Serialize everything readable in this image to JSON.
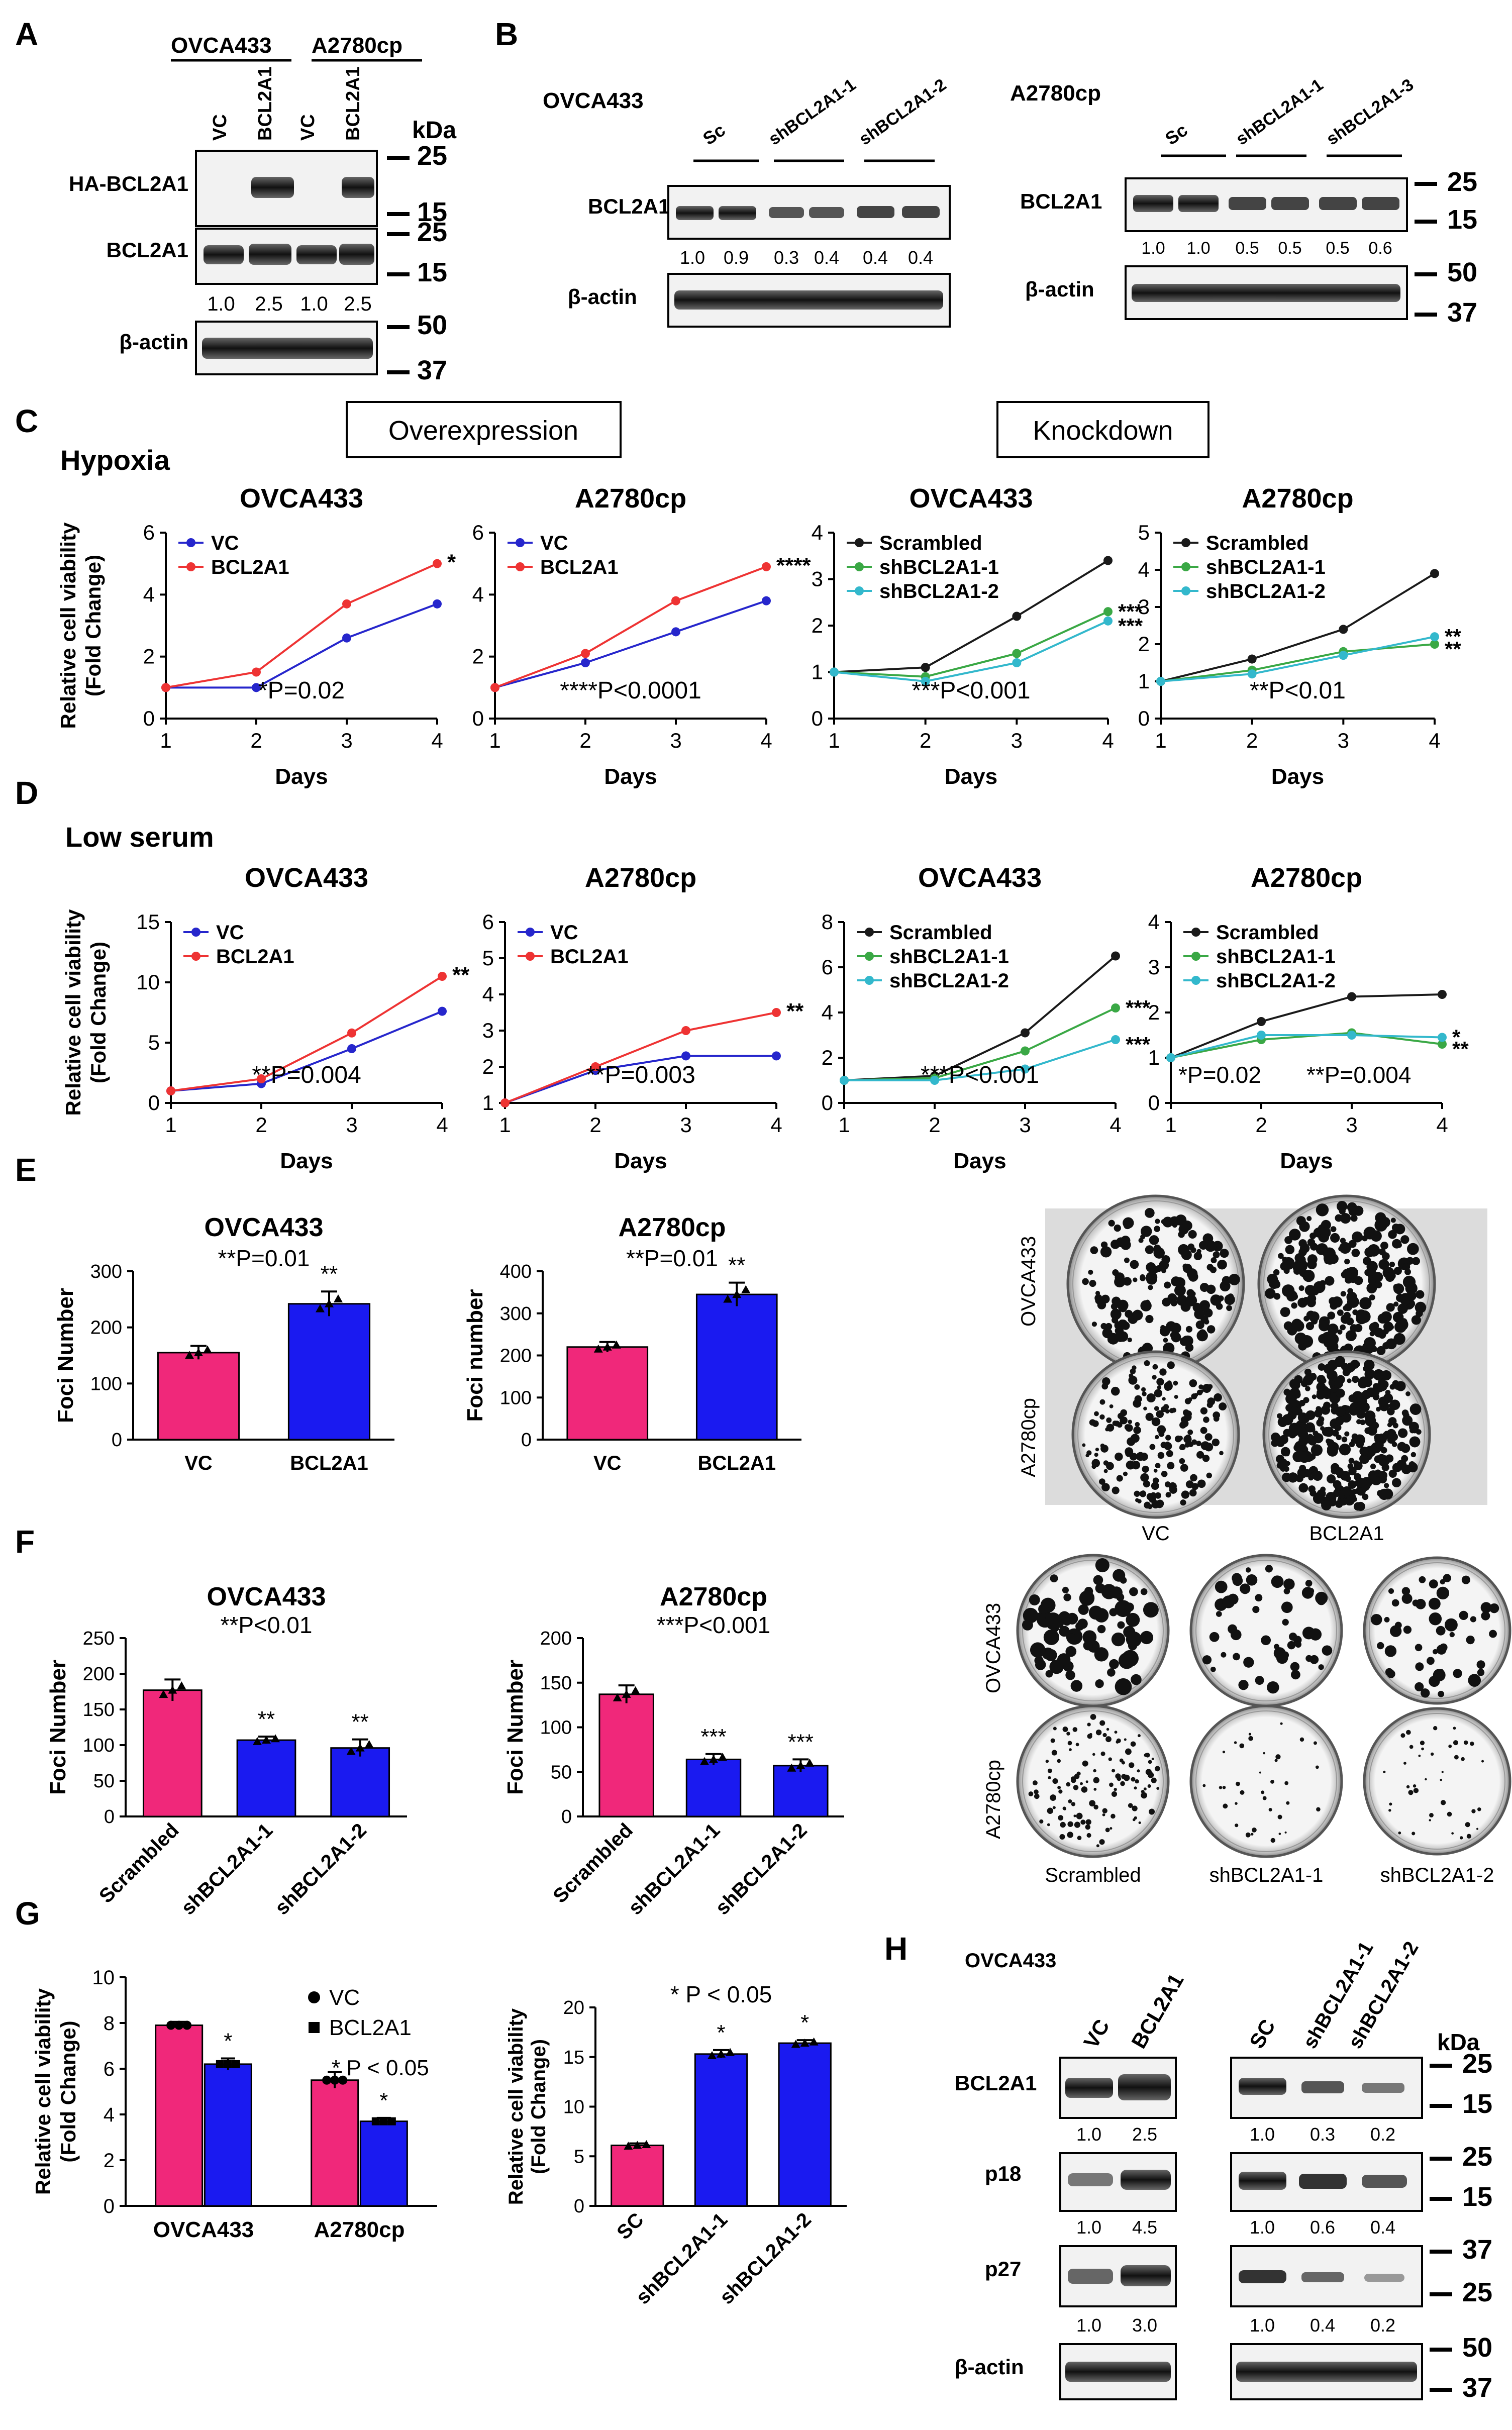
{
  "colors": {
    "red": "#ee3333",
    "blue": "#2626cc",
    "pink": "#f0287a",
    "bar_blue": "#1a1af0",
    "black": "#1a1a1a",
    "green": "#3aa845",
    "cyan": "#33b8cc"
  },
  "panel_letters": {
    "A": "A",
    "B": "B",
    "C": "C",
    "D": "D",
    "E": "E",
    "F": "F",
    "G": "G",
    "H": "H"
  },
  "blots": {
    "A": {
      "cell_lines": [
        "OVCA433",
        "A2780cp"
      ],
      "lanes": [
        "VC",
        "BCL2A1",
        "VC",
        "BCL2A1"
      ],
      "unit": "kDa",
      "rows": [
        {
          "label": "HA-BCL2A1",
          "markers": [
            "25",
            "15"
          ]
        },
        {
          "label": "BCL2A1",
          "markers": [
            "25",
            "15"
          ],
          "quant": [
            "1.0",
            "2.5",
            "1.0",
            "2.5"
          ]
        },
        {
          "label": "β-actin",
          "markers": [
            "50",
            "37"
          ]
        }
      ]
    },
    "B_left": {
      "cell_line": "OVCA433",
      "groups": [
        "Sc",
        "shBCL2A1-1",
        "shBCL2A1-2"
      ],
      "rows": [
        {
          "label": "BCL2A1",
          "quant": [
            "1.0",
            "0.9",
            "0.3",
            "0.4",
            "0.4",
            "0.4"
          ]
        },
        {
          "label": "β-actin"
        }
      ]
    },
    "B_right": {
      "cell_line": "A2780cp",
      "groups": [
        "Sc",
        "shBCL2A1-1",
        "shBCL2A1-3"
      ],
      "rows": [
        {
          "label": "BCL2A1",
          "markers": [
            "25",
            "15"
          ],
          "quant": [
            "1.0",
            "1.0",
            "0.5",
            "0.5",
            "0.5",
            "0.6"
          ]
        },
        {
          "label": "β-actin",
          "markers": [
            "50",
            "37"
          ]
        }
      ]
    },
    "H": {
      "cell_line": "OVCA433",
      "left_lanes": [
        "VC",
        "BCL2A1"
      ],
      "right_lanes": [
        "SC",
        "shBCL2A1-1",
        "shBCL2A1-2"
      ],
      "unit": "kDa",
      "rows": [
        {
          "label": "BCL2A1",
          "markers": [
            "25",
            "15"
          ],
          "left_quant": [
            "1.0",
            "2.5"
          ],
          "right_quant": [
            "1.0",
            "0.3",
            "0.2"
          ]
        },
        {
          "label": "p18",
          "markers": [
            "25",
            "15"
          ],
          "left_quant": [
            "1.0",
            "4.5"
          ],
          "right_quant": [
            "1.0",
            "0.6",
            "0.4"
          ]
        },
        {
          "label": "p27",
          "markers": [
            "37",
            "25"
          ],
          "left_quant": [
            "1.0",
            "3.0"
          ],
          "right_quant": [
            "1.0",
            "0.4",
            "0.2"
          ]
        },
        {
          "label": "β-actin",
          "markers": [
            "50",
            "37"
          ]
        }
      ]
    }
  },
  "section_C": {
    "condition": "Hypoxia",
    "overexpression_label": "Overexpression",
    "knockdown_label": "Knockdown"
  },
  "section_D": {
    "condition": "Low serum"
  },
  "chart_data": [
    {
      "id": "C1",
      "type": "line",
      "title": "OVCA433",
      "xlabel": "Days",
      "ylabel": "Relative cell viability (Fold Change)",
      "x": [
        1,
        2,
        3,
        4
      ],
      "xlim": [
        1,
        4
      ],
      "ylim": [
        0,
        6
      ],
      "yticks": [
        0,
        2,
        4,
        6
      ],
      "series": [
        {
          "name": "VC",
          "color": "#2626cc",
          "values": [
            1.0,
            1.0,
            2.6,
            3.7
          ]
        },
        {
          "name": "BCL2A1",
          "color": "#ee3333",
          "values": [
            1.0,
            1.5,
            3.7,
            5.0
          ]
        }
      ],
      "annotation": "*P=0.02",
      "end_marks": [
        "*"
      ]
    },
    {
      "id": "C2",
      "type": "line",
      "title": "A2780cp",
      "xlabel": "Days",
      "x": [
        1,
        2,
        3,
        4
      ],
      "xlim": [
        1,
        4
      ],
      "ylim": [
        0,
        6
      ],
      "yticks": [
        0,
        2,
        4,
        6
      ],
      "series": [
        {
          "name": "VC",
          "color": "#2626cc",
          "values": [
            1.0,
            1.8,
            2.8,
            3.8
          ]
        },
        {
          "name": "BCL2A1",
          "color": "#ee3333",
          "values": [
            1.0,
            2.1,
            3.8,
            4.9
          ]
        }
      ],
      "annotation": "****P<0.0001",
      "end_marks": [
        "****"
      ]
    },
    {
      "id": "C3",
      "type": "line",
      "title": "OVCA433",
      "xlabel": "Days",
      "x": [
        1,
        2,
        3,
        4
      ],
      "xlim": [
        1,
        4
      ],
      "ylim": [
        0,
        4
      ],
      "yticks": [
        0,
        1,
        2,
        3,
        4
      ],
      "series": [
        {
          "name": "Scrambled",
          "color": "#1a1a1a",
          "values": [
            1.0,
            1.1,
            2.2,
            3.4
          ]
        },
        {
          "name": "shBCL2A1-1",
          "color": "#3aa845",
          "values": [
            1.0,
            0.9,
            1.4,
            2.3
          ]
        },
        {
          "name": "shBCL2A1-2",
          "color": "#33b8cc",
          "values": [
            1.0,
            0.8,
            1.2,
            2.1
          ]
        }
      ],
      "annotation": "***P<0.001",
      "end_marks": [
        "***",
        "***"
      ]
    },
    {
      "id": "C4",
      "type": "line",
      "title": "A2780cp",
      "xlabel": "Days",
      "x": [
        1,
        2,
        3,
        4
      ],
      "xlim": [
        1,
        4
      ],
      "ylim": [
        0,
        5
      ],
      "yticks": [
        0,
        1,
        2,
        3,
        4,
        5
      ],
      "series": [
        {
          "name": "Scrambled",
          "color": "#1a1a1a",
          "values": [
            1.0,
            1.6,
            2.4,
            3.9
          ]
        },
        {
          "name": "shBCL2A1-1",
          "color": "#3aa845",
          "values": [
            1.0,
            1.3,
            1.8,
            2.0
          ]
        },
        {
          "name": "shBCL2A1-2",
          "color": "#33b8cc",
          "values": [
            1.0,
            1.2,
            1.7,
            2.2
          ]
        }
      ],
      "annotation": "**P<0.01",
      "end_marks": [
        "**",
        "**"
      ]
    },
    {
      "id": "D1",
      "type": "line",
      "title": "OVCA433",
      "xlabel": "Days",
      "ylabel": "Relative cell viability (Fold Change)",
      "x": [
        1,
        2,
        3,
        4
      ],
      "xlim": [
        1,
        4
      ],
      "ylim": [
        0,
        15
      ],
      "yticks": [
        0,
        5,
        10,
        15
      ],
      "series": [
        {
          "name": "VC",
          "color": "#2626cc",
          "values": [
            1.0,
            1.6,
            4.5,
            7.6
          ]
        },
        {
          "name": "BCL2A1",
          "color": "#ee3333",
          "values": [
            1.0,
            2.0,
            5.8,
            10.5
          ]
        }
      ],
      "annotation": "**P=0.004",
      "end_marks": [
        "**"
      ]
    },
    {
      "id": "D2",
      "type": "line",
      "title": "A2780cp",
      "xlabel": "Days",
      "x": [
        1,
        2,
        3,
        4
      ],
      "xlim": [
        1,
        4
      ],
      "ylim": [
        1,
        6
      ],
      "yticks": [
        1,
        2,
        3,
        4,
        5,
        6
      ],
      "series": [
        {
          "name": "VC",
          "color": "#2626cc",
          "values": [
            1.0,
            1.9,
            2.3,
            2.3
          ]
        },
        {
          "name": "BCL2A1",
          "color": "#ee3333",
          "values": [
            1.0,
            2.0,
            3.0,
            3.5
          ]
        }
      ],
      "annotation": "**P=0.003",
      "end_marks": [
        "**"
      ]
    },
    {
      "id": "D3",
      "type": "line",
      "title": "OVCA433",
      "xlabel": "Days",
      "x": [
        1,
        2,
        3,
        4
      ],
      "xlim": [
        1,
        4
      ],
      "ylim": [
        0,
        8
      ],
      "yticks": [
        0,
        2,
        4,
        6,
        8
      ],
      "series": [
        {
          "name": "Scrambled",
          "color": "#1a1a1a",
          "values": [
            1.0,
            1.2,
            3.1,
            6.5
          ]
        },
        {
          "name": "shBCL2A1-1",
          "color": "#3aa845",
          "values": [
            1.0,
            1.1,
            2.3,
            4.2
          ]
        },
        {
          "name": "shBCL2A1-2",
          "color": "#33b8cc",
          "values": [
            1.0,
            1.0,
            1.5,
            2.8
          ]
        }
      ],
      "annotation": "***P<0.001",
      "end_marks": [
        "***",
        "***"
      ]
    },
    {
      "id": "D4",
      "type": "line",
      "title": "A2780cp",
      "xlabel": "Days",
      "x": [
        1,
        2,
        3,
        4
      ],
      "xlim": [
        1,
        4
      ],
      "ylim": [
        0,
        4
      ],
      "yticks": [
        0,
        1,
        2,
        3,
        4
      ],
      "series": [
        {
          "name": "Scrambled",
          "color": "#1a1a1a",
          "values": [
            1.0,
            1.8,
            2.35,
            2.4
          ]
        },
        {
          "name": "shBCL2A1-1",
          "color": "#3aa845",
          "values": [
            1.0,
            1.4,
            1.55,
            1.3
          ]
        },
        {
          "name": "shBCL2A1-2",
          "color": "#33b8cc",
          "values": [
            1.0,
            1.5,
            1.5,
            1.45
          ]
        }
      ],
      "annotation": "*P=0.02",
      "annotation2": "**P=0.004",
      "end_marks": [
        "*",
        "**"
      ]
    },
    {
      "id": "E1",
      "type": "bar",
      "title": "OVCA433",
      "ylabel": "Foci Number",
      "categories": [
        "VC",
        "BCL2A1"
      ],
      "values": [
        155,
        242
      ],
      "errors": [
        12,
        22
      ],
      "colors": [
        "#f0287a",
        "#1a1af0"
      ],
      "ylim": [
        0,
        300
      ],
      "yticks": [
        0,
        100,
        200,
        300
      ],
      "annotation": "**P=0.01",
      "bar_marks": [
        "",
        "**"
      ]
    },
    {
      "id": "E2",
      "type": "bar",
      "title": "A2780cp",
      "ylabel": "Foci number",
      "categories": [
        "VC",
        "BCL2A1"
      ],
      "values": [
        220,
        345
      ],
      "errors": [
        12,
        28
      ],
      "colors": [
        "#f0287a",
        "#1a1af0"
      ],
      "ylim": [
        0,
        400
      ],
      "yticks": [
        0,
        100,
        200,
        300,
        400
      ],
      "annotation": "**P=0.01",
      "bar_marks": [
        "",
        "**"
      ]
    },
    {
      "id": "F1",
      "type": "bar",
      "title": "OVCA433",
      "ylabel": "Foci Number",
      "categories": [
        "Scrambled",
        "shBCL2A1-1",
        "shBCL2A1-2"
      ],
      "values": [
        177,
        107,
        96
      ],
      "errors": [
        15,
        5,
        12
      ],
      "colors": [
        "#f0287a",
        "#1a1af0",
        "#1a1af0"
      ],
      "ylim": [
        0,
        250
      ],
      "yticks": [
        0,
        50,
        100,
        150,
        200,
        250
      ],
      "annotation": "**P<0.01",
      "bar_marks": [
        "",
        "**",
        "**"
      ]
    },
    {
      "id": "F2",
      "type": "bar",
      "title": "A2780cp",
      "ylabel": "Foci Number",
      "categories": [
        "Scrambled",
        "shBCL2A1-1",
        "shBCL2A1-2"
      ],
      "values": [
        137,
        64,
        57
      ],
      "errors": [
        10,
        6,
        7
      ],
      "colors": [
        "#f0287a",
        "#1a1af0",
        "#1a1af0"
      ],
      "ylim": [
        0,
        200
      ],
      "yticks": [
        0,
        50,
        100,
        150,
        200
      ],
      "annotation": "***P<0.001",
      "bar_marks": [
        "",
        "***",
        "***"
      ]
    },
    {
      "id": "G1",
      "type": "bar",
      "ylabel": "Relative cell viability (Fold Change)",
      "groups": [
        "OVCA433",
        "A2780cp"
      ],
      "series": [
        {
          "name": "VC",
          "color": "#f0287a",
          "values": [
            7.9,
            5.5
          ],
          "errors": [
            0.15,
            0.35
          ]
        },
        {
          "name": "BCL2A1",
          "color": "#1a1af0",
          "values": [
            6.2,
            3.7
          ],
          "errors": [
            0.25,
            0.15
          ]
        }
      ],
      "ylim": [
        0,
        10
      ],
      "yticks": [
        0,
        2,
        4,
        6,
        8,
        10
      ],
      "annotation": "* P < 0.05",
      "bar_marks": [
        "",
        "*",
        "",
        "*"
      ]
    },
    {
      "id": "G2",
      "type": "bar",
      "ylabel": "Relative cell viability (Fold Change)",
      "categories": [
        "SC",
        "shBCL2A1-1",
        "shBCL2A1-2"
      ],
      "values": [
        6.1,
        15.3,
        16.4
      ],
      "errors": [
        0.2,
        0.4,
        0.3
      ],
      "colors": [
        "#f0287a",
        "#1a1af0",
        "#1a1af0"
      ],
      "ylim": [
        0,
        20
      ],
      "yticks": [
        0,
        5,
        10,
        15,
        20
      ],
      "annotation": "* P < 0.05",
      "bar_marks": [
        "",
        "*",
        "*"
      ]
    }
  ],
  "colony_images": {
    "E": {
      "rows": [
        "OVCA433",
        "A2780cp"
      ],
      "cols": [
        "VC",
        "BCL2A1"
      ]
    },
    "F": {
      "rows": [
        "OVCA433",
        "A2780cp"
      ],
      "cols": [
        "Scrambled",
        "shBCL2A1-1",
        "shBCL2A1-2"
      ]
    }
  }
}
